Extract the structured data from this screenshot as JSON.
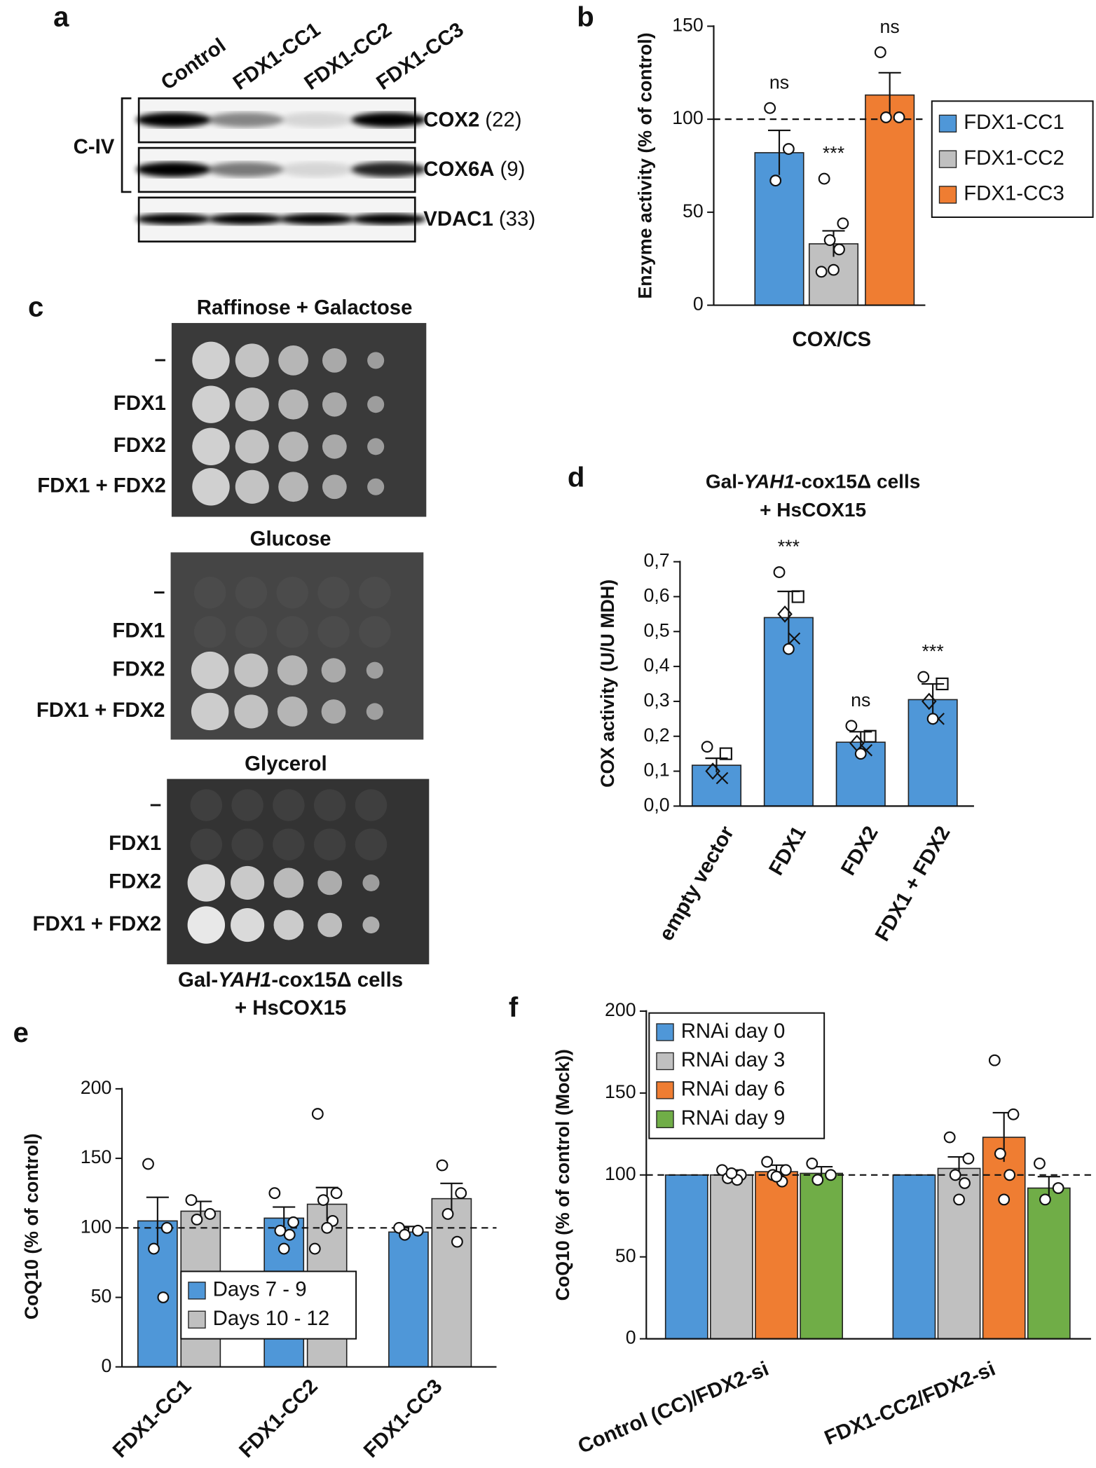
{
  "panel_a": {
    "letter": "a",
    "lanes": [
      "Control",
      "FDX1-CC1",
      "FDX1-CC2",
      "FDX1-CC3"
    ],
    "complex": "C-IV",
    "proteins": [
      {
        "name": "COX2",
        "size": "(22)"
      },
      {
        "name": "COX6A",
        "size": "(9)"
      },
      {
        "name": "VDAC1",
        "size": "(33)"
      }
    ]
  },
  "panel_c": {
    "letter": "c",
    "plates": [
      {
        "title": "Raffinose + Galactose",
        "rows": [
          "–",
          "FDX1",
          "FDX2",
          "FDX1 + FDX2"
        ]
      },
      {
        "title": "Glucose",
        "rows": [
          "–",
          "FDX1",
          "FDX2",
          "FDX1 + FDX2"
        ]
      },
      {
        "title": "Glycerol",
        "rows": [
          "–",
          "FDX1",
          "FDX2",
          "FDX1 + FDX2"
        ]
      }
    ],
    "caption": {
      "prefix": "Gal-",
      "italic": "YAH1",
      "suffix": "-cox15Δ cells",
      "line2": "+ HsCOX15"
    }
  },
  "chart_data": [
    {
      "type": "bar",
      "panel": "b",
      "ylabel": "Enzyme activity (% of control)",
      "categories": [
        "COX/CS"
      ],
      "ylim": [
        0,
        150
      ],
      "yticks": [
        0,
        50,
        100,
        150
      ],
      "reference_line": 100,
      "legend": "right",
      "series": [
        {
          "name": "FDX1-CC1",
          "color": "#4f97d8",
          "values": [
            82
          ],
          "errors": [
            12
          ],
          "points": [
            [
              106,
              84,
              67
            ]
          ],
          "annotations": [
            "ns"
          ]
        },
        {
          "name": "FDX1-CC2",
          "color": "#c0c0c0",
          "values": [
            33
          ],
          "errors": [
            7
          ],
          "points": [
            [
              68,
              44,
              35,
              30,
              19,
              18
            ]
          ],
          "annotations": [
            "***"
          ]
        },
        {
          "name": "FDX1-CC3",
          "color": "#ef7d32",
          "values": [
            113
          ],
          "errors": [
            12
          ],
          "points": [
            [
              136,
              101,
              101
            ]
          ],
          "annotations": [
            "ns"
          ]
        }
      ]
    },
    {
      "type": "bar",
      "panel": "d",
      "title": {
        "prefix": "Gal-",
        "italic": "YAH1",
        "suffix": "-cox15Δ cells",
        "line2": "+ HsCOX15"
      },
      "ylabel": "COX activity (U/U MDH)",
      "categories": [
        "empty vector",
        "FDX1",
        "FDX2",
        "FDX1 + FDX2"
      ],
      "ylim": [
        0,
        0.7
      ],
      "yticks": [
        {
          "value": 0,
          "label": "0,0"
        },
        {
          "value": 0.1,
          "label": "0,1"
        },
        {
          "value": 0.2,
          "label": "0,2"
        },
        {
          "value": 0.3,
          "label": "0,3"
        },
        {
          "value": 0.4,
          "label": "0,4"
        },
        {
          "value": 0.5,
          "label": "0,5"
        },
        {
          "value": 0.6,
          "label": "0,6"
        },
        {
          "value": 0.7,
          "label": "0,7"
        }
      ],
      "color": "#4f97d8",
      "values": [
        0.117,
        0.54,
        0.183,
        0.305
      ],
      "errors": [
        0.02,
        0.075,
        0.03,
        0.045
      ],
      "points": [
        [
          0.17,
          0.15,
          0.1,
          0.08
        ],
        [
          0.67,
          0.6,
          0.55,
          0.48,
          0.45
        ],
        [
          0.23,
          0.2,
          0.18,
          0.16,
          0.15
        ],
        [
          0.37,
          0.35,
          0.3,
          0.25,
          0.25
        ]
      ],
      "annotations": [
        null,
        "***",
        "ns",
        "***"
      ]
    },
    {
      "type": "bar",
      "panel": "e",
      "ylabel": "CoQ10 (% of control)",
      "categories": [
        "FDX1-CC1",
        "FDX1-CC2",
        "FDX1-CC3"
      ],
      "ylim": [
        0,
        200
      ],
      "yticks": [
        0,
        50,
        100,
        150,
        200
      ],
      "reference_line": 100,
      "legend": "lower left",
      "series": [
        {
          "name": "Days 7 - 9",
          "color": "#4f97d8",
          "values": [
            105,
            107,
            97
          ],
          "errors": [
            17,
            8,
            4
          ],
          "points": [
            [
              146,
              100,
              85,
              50
            ],
            [
              125,
              104,
              98,
              95,
              85
            ],
            [
              100,
              98,
              95
            ]
          ]
        },
        {
          "name": "Days 10 - 12",
          "color": "#c0c0c0",
          "values": [
            112,
            117,
            121
          ],
          "errors": [
            7,
            12,
            11
          ],
          "points": [
            [
              120,
              110,
              106
            ],
            [
              182,
              125,
              120,
              105,
              100,
              85
            ],
            [
              145,
              125,
              110,
              90
            ]
          ]
        }
      ]
    },
    {
      "type": "bar",
      "panel": "f",
      "ylabel": "CoQ10 (% of control (Mock))",
      "categories": [
        "Control (CC)/FDX2-si",
        "FDX1-CC2/FDX2-si"
      ],
      "ylim": [
        0,
        200
      ],
      "yticks": [
        0,
        50,
        100,
        150,
        200
      ],
      "reference_line": 100,
      "legend": "upper left",
      "series": [
        {
          "name": "RNAi day 0",
          "color": "#4f97d8",
          "values": [
            100,
            100
          ]
        },
        {
          "name": "RNAi day 3",
          "color": "#c0c0c0",
          "values": [
            100,
            104
          ],
          "errors": [
            3,
            7
          ],
          "points": [
            [
              103,
              100,
              98,
              97,
              101
            ],
            [
              123,
              110,
              100,
              95,
              85
            ]
          ]
        },
        {
          "name": "RNAi day 6",
          "color": "#ef7d32",
          "values": [
            102,
            123
          ],
          "errors": [
            4,
            15
          ],
          "points": [
            [
              108,
              103,
              100,
              96,
              99
            ],
            [
              170,
              137,
              113,
              100,
              85
            ]
          ]
        },
        {
          "name": "RNAi day 9",
          "color": "#70ad47",
          "values": [
            101,
            92
          ],
          "errors": [
            4,
            7
          ],
          "points": [
            [
              107,
              100,
              97
            ],
            [
              107,
              92,
              85
            ]
          ]
        }
      ]
    }
  ]
}
